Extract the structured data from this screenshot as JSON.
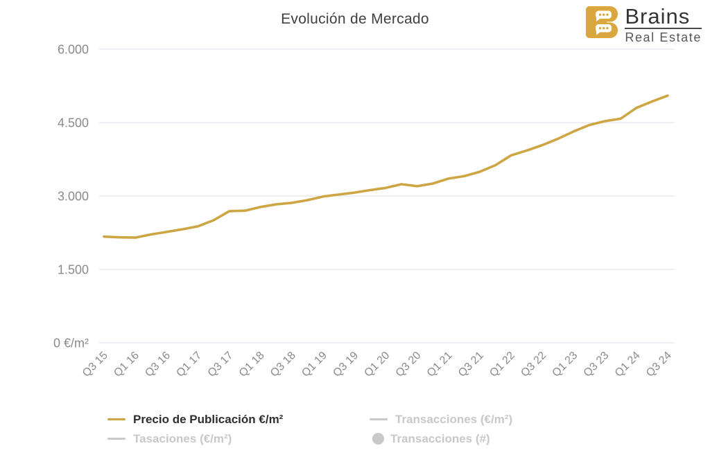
{
  "title": "Evolución de Mercado",
  "logo": {
    "brand": "Brains",
    "subtitle": "Real Estate",
    "icon": "brains-b-speech-bubbles",
    "color": "#daa73e"
  },
  "colors": {
    "accent_gold": "#cda543",
    "logo_gold": "#daa73e",
    "inactive_gray": "#c9c9c9",
    "grid": "#e2e5e9",
    "axis_text": "#8a8a8a",
    "title_text": "#3f3f3f",
    "legend_active_text": "#2e2e2e"
  },
  "legend": [
    {
      "label": "Precio de Publicación €/m²",
      "marker": "line",
      "color": "#cda543",
      "active": true
    },
    {
      "label": "Transacciones (€/m²)",
      "marker": "line",
      "color": "#c9c9c9",
      "active": false
    },
    {
      "label": "Tasaciones (€/m²)",
      "marker": "line",
      "color": "#c9c9c9",
      "active": false
    },
    {
      "label": "Transacciones (#)",
      "marker": "circle",
      "color": "#c9c9c9",
      "active": false
    }
  ],
  "chart_data": {
    "type": "line",
    "title": "Evolución de Mercado",
    "xlabel": "",
    "ylabel": "€/m²",
    "ylim": [
      0,
      6000
    ],
    "grid": "horizontal",
    "legend_position": "bottom",
    "x": [
      "Q3 15",
      "Q4 15",
      "Q1 16",
      "Q2 16",
      "Q3 16",
      "Q4 16",
      "Q1 17",
      "Q2 17",
      "Q3 17",
      "Q4 17",
      "Q1 18",
      "Q2 18",
      "Q3 18",
      "Q4 18",
      "Q1 19",
      "Q2 19",
      "Q3 19",
      "Q4 19",
      "Q1 20",
      "Q2 20",
      "Q3 20",
      "Q4 20",
      "Q1 21",
      "Q2 21",
      "Q3 21",
      "Q4 21",
      "Q1 22",
      "Q2 22",
      "Q3 22",
      "Q4 22",
      "Q1 23",
      "Q2 23",
      "Q3 23",
      "Q4 23",
      "Q1 24",
      "Q2 24",
      "Q3 24"
    ],
    "xtick_labels": [
      "Q3 15",
      "Q1 16",
      "Q3 16",
      "Q1 17",
      "Q3 17",
      "Q1 18",
      "Q3 18",
      "Q1 19",
      "Q3 19",
      "Q1 20",
      "Q3 20",
      "Q1 21",
      "Q3 21",
      "Q1 22",
      "Q3 22",
      "Q1 23",
      "Q3 23",
      "Q1 24",
      "Q3 24"
    ],
    "yticks": [
      {
        "value": 0,
        "label": "0 €/m²"
      },
      {
        "value": 1500,
        "label": "1.500"
      },
      {
        "value": 3000,
        "label": "3.000"
      },
      {
        "value": 4500,
        "label": "4.500"
      },
      {
        "value": 6000,
        "label": "6.000"
      }
    ],
    "series": [
      {
        "name": "Precio de Publicación €/m²",
        "color": "#cda543",
        "values": [
          2170,
          2155,
          2150,
          2215,
          2265,
          2320,
          2380,
          2505,
          2690,
          2700,
          2775,
          2830,
          2860,
          2915,
          2990,
          3030,
          3070,
          3120,
          3165,
          3240,
          3200,
          3255,
          3355,
          3405,
          3495,
          3630,
          3830,
          3930,
          4040,
          4170,
          4320,
          4450,
          4530,
          4580,
          4800,
          4930,
          5050
        ]
      }
    ],
    "hidden_series": [
      "Transacciones (€/m²)",
      "Tasaciones (€/m²)",
      "Transacciones (#)"
    ]
  }
}
